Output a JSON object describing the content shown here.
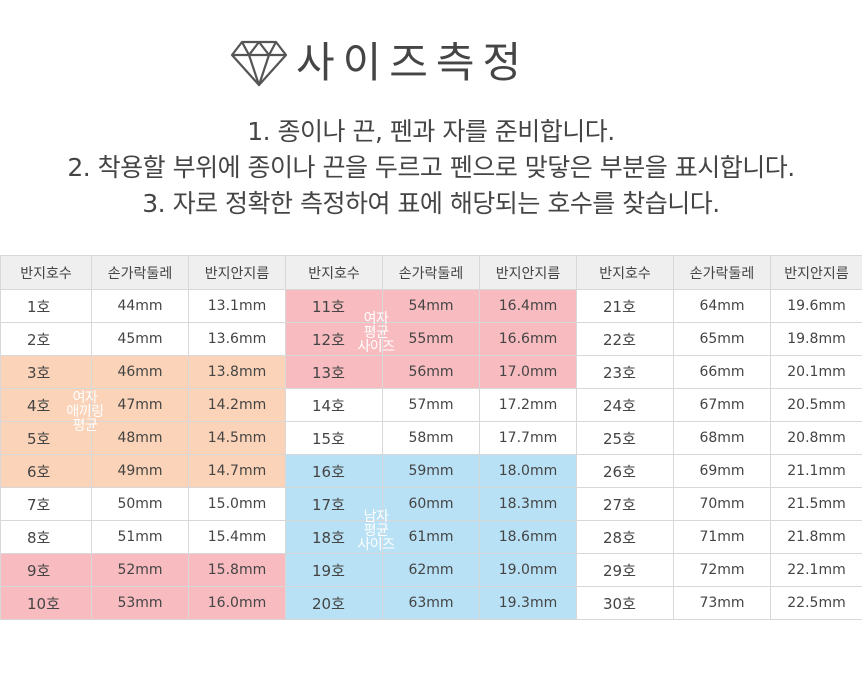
{
  "title": "사이즈측정",
  "instructions": [
    "1. 종이나 끈, 펜과 자를 준비합니다.",
    "2. 착용할 부위에 종이나 끈을 두르고 펜으로 맞닿은 부분을 표시합니다.",
    "3. 자로 정확한 측정하여 표에 해당되는 호수를 찾습니다."
  ],
  "columns": [
    "반지호수",
    "손가락둘레",
    "반지안지름"
  ],
  "rows": [
    [
      {
        "s": "1호",
        "c": "44mm",
        "d": "13.1mm",
        "hl": ""
      },
      {
        "s": "11호",
        "c": "54mm",
        "d": "16.4mm",
        "hl": "pink"
      },
      {
        "s": "21호",
        "c": "64mm",
        "d": "19.6mm",
        "hl": ""
      }
    ],
    [
      {
        "s": "2호",
        "c": "45mm",
        "d": "13.6mm",
        "hl": ""
      },
      {
        "s": "12호",
        "c": "55mm",
        "d": "16.6mm",
        "hl": "pink"
      },
      {
        "s": "22호",
        "c": "65mm",
        "d": "19.8mm",
        "hl": ""
      }
    ],
    [
      {
        "s": "3호",
        "c": "46mm",
        "d": "13.8mm",
        "hl": "peach"
      },
      {
        "s": "13호",
        "c": "56mm",
        "d": "17.0mm",
        "hl": "pink"
      },
      {
        "s": "23호",
        "c": "66mm",
        "d": "20.1mm",
        "hl": ""
      }
    ],
    [
      {
        "s": "4호",
        "c": "47mm",
        "d": "14.2mm",
        "hl": "peach"
      },
      {
        "s": "14호",
        "c": "57mm",
        "d": "17.2mm",
        "hl": ""
      },
      {
        "s": "24호",
        "c": "67mm",
        "d": "20.5mm",
        "hl": ""
      }
    ],
    [
      {
        "s": "5호",
        "c": "48mm",
        "d": "14.5mm",
        "hl": "peach"
      },
      {
        "s": "15호",
        "c": "58mm",
        "d": "17.7mm",
        "hl": ""
      },
      {
        "s": "25호",
        "c": "68mm",
        "d": "20.8mm",
        "hl": ""
      }
    ],
    [
      {
        "s": "6호",
        "c": "49mm",
        "d": "14.7mm",
        "hl": "peach"
      },
      {
        "s": "16호",
        "c": "59mm",
        "d": "18.0mm",
        "hl": "blue"
      },
      {
        "s": "26호",
        "c": "69mm",
        "d": "21.1mm",
        "hl": ""
      }
    ],
    [
      {
        "s": "7호",
        "c": "50mm",
        "d": "15.0mm",
        "hl": ""
      },
      {
        "s": "17호",
        "c": "60mm",
        "d": "18.3mm",
        "hl": "blue"
      },
      {
        "s": "27호",
        "c": "70mm",
        "d": "21.5mm",
        "hl": ""
      }
    ],
    [
      {
        "s": "8호",
        "c": "51mm",
        "d": "15.4mm",
        "hl": ""
      },
      {
        "s": "18호",
        "c": "61mm",
        "d": "18.6mm",
        "hl": "blue"
      },
      {
        "s": "28호",
        "c": "71mm",
        "d": "21.8mm",
        "hl": ""
      }
    ],
    [
      {
        "s": "9호",
        "c": "52mm",
        "d": "15.8mm",
        "hl": "pink"
      },
      {
        "s": "19호",
        "c": "62mm",
        "d": "19.0mm",
        "hl": "blue"
      },
      {
        "s": "29호",
        "c": "72mm",
        "d": "22.1mm",
        "hl": ""
      }
    ],
    [
      {
        "s": "10호",
        "c": "53mm",
        "d": "16.0mm",
        "hl": "pink"
      },
      {
        "s": "20호",
        "c": "63mm",
        "d": "19.3mm",
        "hl": "blue"
      },
      {
        "s": "30호",
        "c": "73mm",
        "d": "22.5mm",
        "hl": ""
      }
    ]
  ],
  "tags": {
    "women_pinky": "여자\n애끼링\n평균",
    "women_avg": "여자\n평균\n사이즈",
    "men_avg": "남자\n평균\n사이즈"
  },
  "colors": {
    "peach": "#fbd3b8",
    "pink": "#f8bcc0",
    "blue": "#b9e1f5",
    "header": "#efefef"
  },
  "icon": "diamond-icon"
}
